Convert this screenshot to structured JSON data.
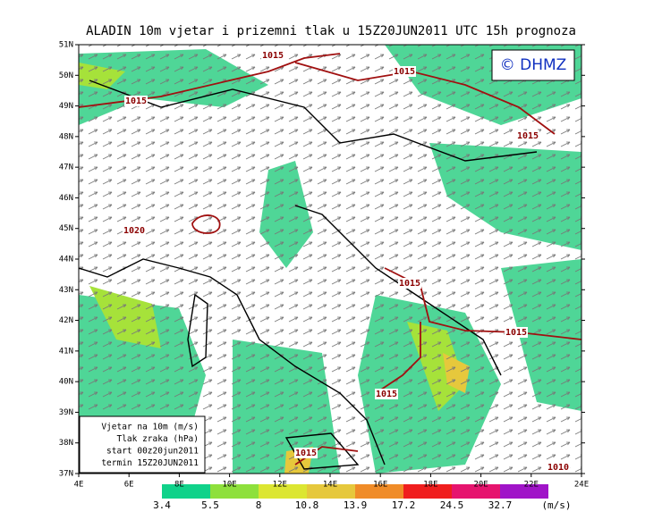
{
  "header": {
    "title": "ALADIN 10m vjetar i prizemni tlak u 15Z20JUN2011 UTC 15h prognoza"
  },
  "logo": "© DHMZ",
  "lat_labels": [
    "51N",
    "50N",
    "49N",
    "48N",
    "47N",
    "46N",
    "45N",
    "44N",
    "43N",
    "42N",
    "41N",
    "40N",
    "39N",
    "38N",
    "37N"
  ],
  "lon_labels": [
    "4E",
    "6E",
    "8E",
    "10E",
    "12E",
    "14E",
    "16E",
    "18E",
    "20E",
    "22E",
    "24E"
  ],
  "isobar_labels": [
    "1015",
    "1015",
    "1015",
    "1015",
    "1020",
    "1015",
    "1015",
    "1015",
    "1015",
    "1010"
  ],
  "info_box": [
    "Vjetar na 10m (m/s)",
    "Tlak zraka (hPa)",
    "start 00z20jun2011",
    "termin 15Z20JUN2011"
  ],
  "colorbar": {
    "labels": [
      "3.4",
      "5.5",
      "8",
      "10.8",
      "13.9",
      "17.2",
      "24.5",
      "32.7"
    ],
    "unit": "(m/s)"
  }
}
